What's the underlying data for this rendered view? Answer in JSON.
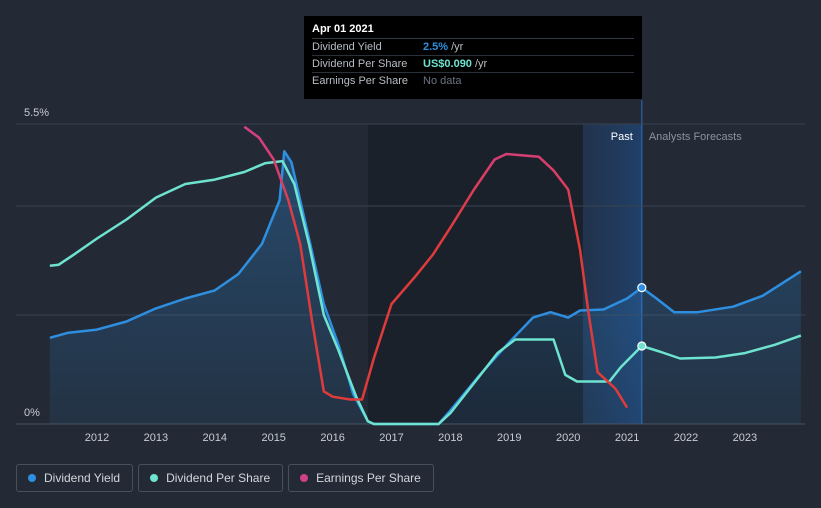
{
  "chart_data": {
    "type": "line",
    "title": "",
    "xlabel": "",
    "ylabel": "",
    "xlim": [
      2011.15,
      2023.95
    ],
    "ylim": [
      0,
      5.5
    ],
    "y_axis_labels": {
      "top": "5.5%",
      "bottom": "0%"
    },
    "x_ticks": [
      "2012",
      "2013",
      "2014",
      "2015",
      "2016",
      "2017",
      "2018",
      "2019",
      "2020",
      "2021",
      "2022",
      "2023"
    ],
    "x_tick_values": [
      2012,
      2013,
      2014,
      2015,
      2016,
      2017,
      2018,
      2019,
      2020,
      2021,
      2022,
      2023
    ],
    "regions": {
      "past_label": "Past",
      "forecast_label": "Analysts Forecasts",
      "past_start": 2020.25,
      "past_end": 2021.25
    },
    "series": [
      {
        "name": "Dividend Yield",
        "color": "#2e8fe0",
        "fill": true,
        "points": [
          [
            2011.2,
            1.58
          ],
          [
            2011.5,
            1.67
          ],
          [
            2012.0,
            1.73
          ],
          [
            2012.5,
            1.88
          ],
          [
            2013.0,
            2.12
          ],
          [
            2013.5,
            2.3
          ],
          [
            2014.0,
            2.45
          ],
          [
            2014.4,
            2.75
          ],
          [
            2014.8,
            3.3
          ],
          [
            2015.1,
            4.1
          ],
          [
            2015.18,
            5.0
          ],
          [
            2015.3,
            4.8
          ],
          [
            2015.6,
            3.4
          ],
          [
            2015.85,
            2.2
          ],
          [
            2016.1,
            1.45
          ],
          [
            2016.35,
            0.55
          ],
          [
            2016.6,
            0.05
          ],
          [
            2016.7,
            0.0
          ],
          [
            2017.8,
            0.0
          ],
          [
            2018.0,
            0.25
          ],
          [
            2018.5,
            0.9
          ],
          [
            2019.0,
            1.5
          ],
          [
            2019.4,
            1.95
          ],
          [
            2019.7,
            2.05
          ],
          [
            2020.0,
            1.95
          ],
          [
            2020.2,
            2.08
          ],
          [
            2020.6,
            2.1
          ],
          [
            2021.0,
            2.3
          ],
          [
            2021.25,
            2.5
          ],
          [
            2021.5,
            2.3
          ],
          [
            2021.8,
            2.05
          ],
          [
            2022.2,
            2.05
          ],
          [
            2022.8,
            2.15
          ],
          [
            2023.3,
            2.35
          ],
          [
            2023.95,
            2.8
          ]
        ]
      },
      {
        "name": "Dividend Per Share",
        "color": "#6ee3d0",
        "fill": false,
        "points": [
          [
            2011.2,
            2.9
          ],
          [
            2011.35,
            2.92
          ],
          [
            2011.6,
            3.1
          ],
          [
            2012.0,
            3.4
          ],
          [
            2012.5,
            3.75
          ],
          [
            2013.0,
            4.15
          ],
          [
            2013.5,
            4.4
          ],
          [
            2014.0,
            4.48
          ],
          [
            2014.5,
            4.62
          ],
          [
            2014.85,
            4.78
          ],
          [
            2015.15,
            4.82
          ],
          [
            2015.35,
            4.4
          ],
          [
            2015.6,
            3.3
          ],
          [
            2015.85,
            2.0
          ],
          [
            2016.1,
            1.35
          ],
          [
            2016.4,
            0.5
          ],
          [
            2016.6,
            0.05
          ],
          [
            2016.7,
            0.0
          ],
          [
            2017.8,
            0.0
          ],
          [
            2018.0,
            0.2
          ],
          [
            2018.4,
            0.75
          ],
          [
            2018.8,
            1.3
          ],
          [
            2019.1,
            1.55
          ],
          [
            2019.75,
            1.55
          ],
          [
            2019.95,
            0.9
          ],
          [
            2020.15,
            0.78
          ],
          [
            2020.7,
            0.78
          ],
          [
            2020.9,
            1.05
          ],
          [
            2021.25,
            1.43
          ],
          [
            2021.55,
            1.33
          ],
          [
            2021.9,
            1.2
          ],
          [
            2022.5,
            1.22
          ],
          [
            2023.0,
            1.3
          ],
          [
            2023.5,
            1.45
          ],
          [
            2023.95,
            1.62
          ]
        ]
      },
      {
        "name": "Earnings Per Share",
        "color": "#d3408a",
        "end_color": "#e03b3b",
        "fill": false,
        "points": [
          [
            2014.5,
            5.45
          ],
          [
            2014.75,
            5.25
          ],
          [
            2015.0,
            4.85
          ],
          [
            2015.25,
            4.1
          ],
          [
            2015.45,
            3.3
          ],
          [
            2015.65,
            1.9
          ],
          [
            2015.85,
            0.6
          ],
          [
            2016.0,
            0.5
          ],
          [
            2016.3,
            0.45
          ],
          [
            2016.5,
            0.45
          ],
          [
            2016.7,
            1.2
          ],
          [
            2017.0,
            2.2
          ],
          [
            2017.4,
            2.7
          ],
          [
            2017.7,
            3.1
          ],
          [
            2018.0,
            3.6
          ],
          [
            2018.4,
            4.3
          ],
          [
            2018.75,
            4.85
          ],
          [
            2018.95,
            4.95
          ],
          [
            2019.5,
            4.9
          ],
          [
            2019.75,
            4.65
          ],
          [
            2020.0,
            4.3
          ],
          [
            2020.2,
            3.2
          ],
          [
            2020.35,
            2.0
          ],
          [
            2020.5,
            0.95
          ],
          [
            2020.8,
            0.65
          ],
          [
            2021.0,
            0.3
          ]
        ]
      }
    ]
  },
  "tooltip": {
    "date": "Apr 01 2021",
    "rows": [
      {
        "label": "Dividend Yield",
        "value": "2.5%",
        "unit": "/yr",
        "color": "#2e8fe0"
      },
      {
        "label": "Dividend Per Share",
        "value": "US$0.090",
        "unit": "/yr",
        "color": "#6ee3d0"
      },
      {
        "label": "Earnings Per Share",
        "value": "No data",
        "unit": "",
        "color": "#6b7280"
      }
    ]
  },
  "legend": [
    {
      "label": "Dividend Yield",
      "color": "#2e8fe0"
    },
    {
      "label": "Dividend Per Share",
      "color": "#6ee3d0"
    },
    {
      "label": "Earnings Per Share",
      "color": "#d3408a"
    }
  ]
}
